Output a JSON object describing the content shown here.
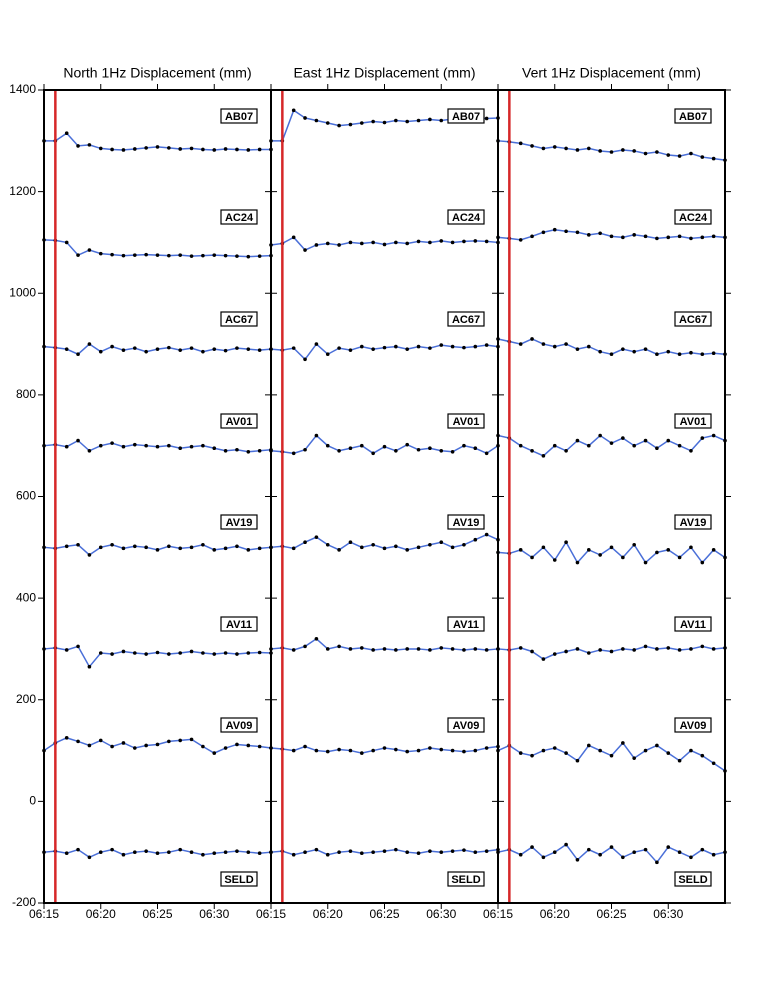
{
  "chart_data": [
    {
      "type": "line",
      "title": "North 1Hz Displacement (mm)",
      "x": [
        "06:15",
        "06:16",
        "06:17",
        "06:18",
        "06:19",
        "06:20",
        "06:21",
        "06:22",
        "06:23",
        "06:24",
        "06:25",
        "06:26",
        "06:27",
        "06:28",
        "06:29",
        "06:30",
        "06:31",
        "06:32",
        "06:33",
        "06:34",
        "06:35"
      ],
      "xlim": [
        "06:15",
        "06:35"
      ],
      "xticks": [
        "06:15",
        "06:20",
        "06:25",
        "06:30"
      ],
      "ylim": [
        -200,
        1400
      ],
      "yticks": [
        -200,
        0,
        200,
        400,
        600,
        800,
        1000,
        1200,
        1400
      ],
      "line_color": "#4a6fd8",
      "marker_color": "#000000",
      "event_line": {
        "x": "06:16",
        "color": "#d62728"
      },
      "series": [
        {
          "name": "AB07",
          "values": [
            1300,
            1300,
            1315,
            1290,
            1292,
            1285,
            1283,
            1282,
            1284,
            1286,
            1288,
            1286,
            1284,
            1285,
            1283,
            1282,
            1284,
            1283,
            1282,
            1283,
            1283
          ]
        },
        {
          "name": "AC24",
          "values": [
            1105,
            1104,
            1100,
            1075,
            1085,
            1078,
            1076,
            1074,
            1075,
            1076,
            1075,
            1074,
            1075,
            1073,
            1074,
            1075,
            1074,
            1073,
            1072,
            1073,
            1074
          ]
        },
        {
          "name": "AC67",
          "values": [
            895,
            893,
            890,
            880,
            900,
            885,
            895,
            888,
            892,
            885,
            890,
            893,
            888,
            892,
            885,
            890,
            887,
            892,
            890,
            888,
            890
          ]
        },
        {
          "name": "AV01",
          "values": [
            700,
            702,
            698,
            710,
            690,
            700,
            705,
            698,
            702,
            700,
            698,
            700,
            695,
            698,
            700,
            695,
            690,
            692,
            688,
            690,
            692
          ]
        },
        {
          "name": "AV19",
          "values": [
            500,
            498,
            502,
            505,
            485,
            500,
            505,
            498,
            502,
            500,
            495,
            502,
            498,
            500,
            505,
            495,
            498,
            502,
            495,
            498,
            500
          ]
        },
        {
          "name": "AV11",
          "values": [
            300,
            302,
            298,
            305,
            265,
            292,
            290,
            295,
            292,
            290,
            293,
            290,
            292,
            295,
            292,
            290,
            292,
            290,
            292,
            293,
            292
          ]
        },
        {
          "name": "AV09",
          "values": [
            100,
            115,
            125,
            118,
            110,
            120,
            108,
            115,
            105,
            110,
            112,
            118,
            120,
            122,
            108,
            95,
            105,
            112,
            110,
            108,
            105
          ]
        },
        {
          "name": "SELD",
          "values": [
            -100,
            -98,
            -102,
            -95,
            -110,
            -100,
            -95,
            -105,
            -100,
            -98,
            -102,
            -100,
            -95,
            -100,
            -105,
            -102,
            -100,
            -98,
            -100,
            -102,
            -100
          ]
        }
      ]
    },
    {
      "type": "line",
      "title": "East 1Hz Displacement (mm)",
      "x": [
        "06:15",
        "06:16",
        "06:17",
        "06:18",
        "06:19",
        "06:20",
        "06:21",
        "06:22",
        "06:23",
        "06:24",
        "06:25",
        "06:26",
        "06:27",
        "06:28",
        "06:29",
        "06:30",
        "06:31",
        "06:32",
        "06:33",
        "06:34",
        "06:35"
      ],
      "xlim": [
        "06:15",
        "06:35"
      ],
      "xticks": [
        "06:15",
        "06:20",
        "06:25",
        "06:30"
      ],
      "ylim": [
        -200,
        1400
      ],
      "yticks": [
        -200,
        0,
        200,
        400,
        600,
        800,
        1000,
        1200,
        1400
      ],
      "line_color": "#4a6fd8",
      "marker_color": "#000000",
      "event_line": {
        "x": "06:16",
        "color": "#d62728"
      },
      "series": [
        {
          "name": "AB07",
          "values": [
            1300,
            1300,
            1360,
            1345,
            1340,
            1335,
            1330,
            1332,
            1335,
            1338,
            1336,
            1340,
            1338,
            1340,
            1342,
            1340,
            1343,
            1342,
            1345,
            1344,
            1345
          ]
        },
        {
          "name": "AC24",
          "values": [
            1095,
            1098,
            1110,
            1085,
            1095,
            1098,
            1095,
            1100,
            1098,
            1100,
            1096,
            1100,
            1098,
            1102,
            1100,
            1103,
            1100,
            1102,
            1103,
            1102,
            1100
          ]
        },
        {
          "name": "AC67",
          "values": [
            890,
            888,
            892,
            870,
            900,
            880,
            892,
            888,
            895,
            890,
            893,
            895,
            890,
            895,
            892,
            898,
            895,
            893,
            895,
            898,
            895
          ]
        },
        {
          "name": "AV01",
          "values": [
            690,
            688,
            685,
            692,
            720,
            700,
            690,
            695,
            700,
            685,
            698,
            690,
            702,
            692,
            695,
            690,
            688,
            700,
            695,
            685,
            700
          ]
        },
        {
          "name": "AV19",
          "values": [
            500,
            502,
            498,
            510,
            520,
            505,
            495,
            510,
            500,
            505,
            498,
            502,
            495,
            500,
            505,
            510,
            500,
            505,
            515,
            525,
            515
          ]
        },
        {
          "name": "AV11",
          "values": [
            300,
            302,
            298,
            305,
            320,
            300,
            305,
            300,
            302,
            298,
            300,
            298,
            300,
            300,
            298,
            302,
            300,
            298,
            300,
            298,
            300
          ]
        },
        {
          "name": "AV09",
          "values": [
            105,
            103,
            100,
            108,
            100,
            98,
            102,
            100,
            95,
            100,
            105,
            102,
            98,
            100,
            105,
            102,
            100,
            98,
            100,
            105,
            108
          ]
        },
        {
          "name": "SELD",
          "values": [
            -100,
            -98,
            -105,
            -100,
            -95,
            -105,
            -100,
            -98,
            -102,
            -100,
            -98,
            -95,
            -100,
            -102,
            -98,
            -100,
            -98,
            -96,
            -100,
            -98,
            -95
          ]
        }
      ]
    },
    {
      "type": "line",
      "title": "Vert 1Hz Displacement (mm)",
      "x": [
        "06:15",
        "06:16",
        "06:17",
        "06:18",
        "06:19",
        "06:20",
        "06:21",
        "06:22",
        "06:23",
        "06:24",
        "06:25",
        "06:26",
        "06:27",
        "06:28",
        "06:29",
        "06:30",
        "06:31",
        "06:32",
        "06:33",
        "06:34",
        "06:35"
      ],
      "xlim": [
        "06:15",
        "06:35"
      ],
      "xticks": [
        "06:15",
        "06:20",
        "06:25",
        "06:30"
      ],
      "ylim": [
        -200,
        1400
      ],
      "yticks": [
        -200,
        0,
        200,
        400,
        600,
        800,
        1000,
        1200,
        1400
      ],
      "line_color": "#4a6fd8",
      "marker_color": "#000000",
      "event_line": {
        "x": "06:16",
        "color": "#d62728"
      },
      "series": [
        {
          "name": "AB07",
          "values": [
            1300,
            1298,
            1295,
            1290,
            1285,
            1288,
            1285,
            1282,
            1285,
            1280,
            1278,
            1282,
            1280,
            1275,
            1278,
            1272,
            1270,
            1275,
            1268,
            1265,
            1262
          ]
        },
        {
          "name": "AC24",
          "values": [
            1110,
            1108,
            1105,
            1112,
            1120,
            1125,
            1122,
            1120,
            1115,
            1118,
            1112,
            1110,
            1115,
            1112,
            1108,
            1110,
            1112,
            1108,
            1110,
            1112,
            1110
          ]
        },
        {
          "name": "AC67",
          "values": [
            910,
            905,
            900,
            910,
            900,
            895,
            900,
            890,
            895,
            885,
            880,
            890,
            885,
            890,
            880,
            885,
            880,
            883,
            880,
            882,
            880
          ]
        },
        {
          "name": "AV01",
          "values": [
            720,
            715,
            700,
            690,
            680,
            700,
            690,
            710,
            700,
            720,
            705,
            715,
            700,
            710,
            695,
            710,
            700,
            690,
            715,
            720,
            710
          ]
        },
        {
          "name": "AV19",
          "values": [
            490,
            488,
            495,
            480,
            500,
            475,
            510,
            470,
            495,
            485,
            500,
            480,
            505,
            470,
            490,
            495,
            480,
            500,
            470,
            495,
            480
          ]
        },
        {
          "name": "AV11",
          "values": [
            300,
            298,
            302,
            295,
            280,
            290,
            295,
            300,
            292,
            298,
            295,
            300,
            298,
            305,
            300,
            302,
            298,
            300,
            305,
            300,
            302
          ]
        },
        {
          "name": "AV09",
          "values": [
            100,
            110,
            95,
            90,
            100,
            105,
            95,
            80,
            110,
            100,
            90,
            115,
            85,
            100,
            110,
            95,
            80,
            100,
            90,
            75,
            60
          ]
        },
        {
          "name": "SELD",
          "values": [
            -100,
            -95,
            -105,
            -90,
            -110,
            -100,
            -85,
            -115,
            -95,
            -105,
            -90,
            -110,
            -100,
            -95,
            -120,
            -90,
            -100,
            -110,
            -95,
            -105,
            -100
          ]
        }
      ]
    }
  ]
}
